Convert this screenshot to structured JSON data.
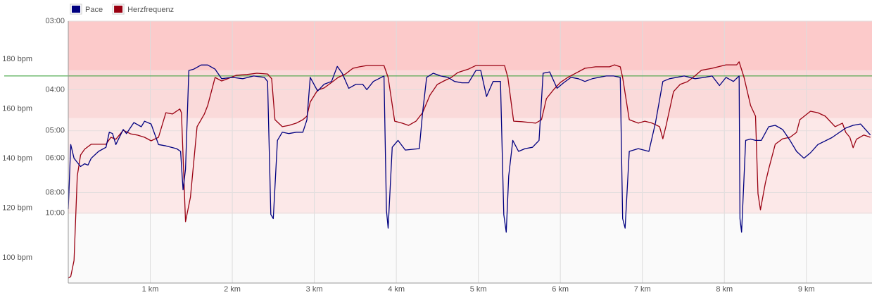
{
  "chart_data": {
    "type": "line",
    "legend": "top-left",
    "grid": true,
    "xlim": [
      0,
      9.8
    ],
    "xticks": [
      {
        "value": 1,
        "label": "1 km"
      },
      {
        "value": 2,
        "label": "2 km"
      },
      {
        "value": 3,
        "label": "3 km"
      },
      {
        "value": 4,
        "label": "4 km"
      },
      {
        "value": 5,
        "label": "5 km"
      },
      {
        "value": 6,
        "label": "6 km"
      },
      {
        "value": 7,
        "label": "7 km"
      },
      {
        "value": 8,
        "label": "8 km"
      },
      {
        "value": 9,
        "label": "9 km"
      }
    ],
    "ylim": [
      89.8,
      195.3
    ],
    "yticks": [
      {
        "value": 100,
        "label": "100 bpm"
      },
      {
        "value": 120,
        "label": "120 bpm"
      },
      {
        "value": 140,
        "label": "140 bpm"
      },
      {
        "value": 160,
        "label": "160 bpm"
      },
      {
        "value": 180,
        "label": "180 bpm"
      }
    ],
    "y2lim": [
      0.9,
      20
    ],
    "y2ticks": [
      {
        "value": 6,
        "label": "10:00"
      },
      {
        "value": 7.5,
        "label": "08:00"
      },
      {
        "value": 10,
        "label": "06:00"
      },
      {
        "value": 12,
        "label": "05:00"
      },
      {
        "value": 15,
        "label": "04:00"
      },
      {
        "value": 20,
        "label": "03:00"
      }
    ],
    "bands": [
      {
        "from": 117.7,
        "to": 156.3,
        "color": "#fce8e8"
      },
      {
        "from": 156.3,
        "to": 175.5,
        "color": "#fadada"
      },
      {
        "from": 175.5,
        "to": 195.3,
        "color": "#fccaca"
      }
    ],
    "threshold_line": {
      "value": 173.2,
      "color": "#2e9a2e"
    },
    "series": [
      {
        "name": "Pace",
        "color": "#000080",
        "axis": "y2",
        "x": [
          0,
          0.03,
          0.07,
          0.11,
          0.15,
          0.2,
          0.24,
          0.28,
          0.37,
          0.46,
          0.5,
          0.54,
          0.58,
          0.67,
          0.71,
          0.8,
          0.89,
          0.93,
          1.01,
          1.1,
          1.19,
          1.32,
          1.37,
          1.4,
          1.43,
          1.47,
          1.53,
          1.62,
          1.7,
          1.79,
          1.87,
          2.0,
          2.13,
          2.26,
          2.39,
          2.43,
          2.47,
          2.5,
          2.55,
          2.61,
          2.69,
          2.78,
          2.86,
          2.91,
          2.95,
          3.04,
          3.12,
          3.21,
          3.28,
          3.34,
          3.42,
          3.51,
          3.59,
          3.64,
          3.72,
          3.85,
          3.88,
          3.9,
          3.95,
          4.02,
          4.11,
          4.28,
          4.32,
          4.37,
          4.45,
          4.54,
          4.63,
          4.71,
          4.8,
          4.88,
          4.97,
          5.03,
          5.1,
          5.18,
          5.27,
          5.31,
          5.34,
          5.37,
          5.42,
          5.49,
          5.57,
          5.66,
          5.74,
          5.79,
          5.87,
          5.96,
          6.04,
          6.13,
          6.22,
          6.3,
          6.39,
          6.47,
          6.56,
          6.65,
          6.73,
          6.76,
          6.79,
          6.84,
          6.95,
          7.08,
          7.16,
          7.25,
          7.33,
          7.42,
          7.51,
          7.64,
          7.76,
          7.85,
          7.94,
          8.02,
          8.11,
          8.18,
          8.19,
          8.21,
          8.26,
          8.32,
          8.38,
          8.45,
          8.54,
          8.62,
          8.71,
          8.8,
          8.88,
          8.97,
          9.05,
          9.14,
          9.31,
          9.48,
          9.57,
          9.66,
          9.78
        ],
        "values": [
          6.3,
          11.0,
          10.0,
          9.7,
          9.4,
          9.6,
          9.5,
          10.0,
          10.5,
          10.8,
          11.9,
          11.8,
          11.0,
          12.1,
          11.8,
          12.6,
          12.3,
          12.7,
          12.5,
          11.0,
          10.9,
          10.7,
          10.5,
          7.7,
          9.2,
          16.4,
          16.5,
          16.8,
          16.8,
          16.5,
          15.8,
          15.9,
          15.8,
          16.0,
          15.9,
          15.6,
          5.9,
          5.6,
          11.3,
          11.9,
          11.8,
          11.9,
          11.9,
          12.8,
          15.9,
          14.9,
          15.4,
          15.6,
          16.7,
          16.2,
          15.1,
          15.4,
          15.4,
          15.0,
          15.6,
          16.0,
          6.2,
          4.9,
          10.8,
          11.3,
          10.6,
          10.7,
          13.3,
          15.9,
          16.2,
          16.0,
          15.9,
          15.6,
          15.5,
          15.5,
          16.4,
          16.4,
          14.5,
          15.6,
          15.6,
          5.9,
          4.6,
          8.7,
          11.3,
          10.5,
          10.7,
          10.8,
          11.3,
          16.2,
          16.3,
          15.1,
          15.5,
          15.9,
          15.8,
          15.6,
          15.8,
          15.9,
          16.0,
          16.0,
          15.9,
          5.6,
          4.9,
          10.5,
          10.7,
          10.5,
          12.6,
          15.6,
          15.8,
          15.9,
          16.0,
          15.8,
          15.9,
          16.0,
          15.3,
          15.9,
          15.6,
          16.0,
          5.6,
          4.6,
          11.3,
          11.4,
          11.3,
          11.3,
          12.3,
          12.4,
          12.1,
          11.3,
          10.5,
          10.0,
          10.4,
          11.0,
          11.5,
          12.2,
          12.4,
          12.5,
          11.7
        ]
      },
      {
        "name": "Herzfrequenz",
        "color": "#990011",
        "axis": "y",
        "x": [
          0,
          0.03,
          0.07,
          0.11,
          0.15,
          0.2,
          0.28,
          0.46,
          0.52,
          0.58,
          0.67,
          0.76,
          0.84,
          0.93,
          1.01,
          1.1,
          1.19,
          1.27,
          1.36,
          1.38,
          1.43,
          1.49,
          1.57,
          1.66,
          1.7,
          1.79,
          1.87,
          1.92,
          2.05,
          2.18,
          2.3,
          2.43,
          2.48,
          2.52,
          2.61,
          2.69,
          2.78,
          2.86,
          2.91,
          2.95,
          3.04,
          3.12,
          3.21,
          3.29,
          3.38,
          3.47,
          3.55,
          3.64,
          3.85,
          3.9,
          3.98,
          4.07,
          4.15,
          4.24,
          4.32,
          4.41,
          4.5,
          4.58,
          4.67,
          4.75,
          4.88,
          4.97,
          5.32,
          5.36,
          5.43,
          5.53,
          5.7,
          5.77,
          5.83,
          5.92,
          6.0,
          6.09,
          6.17,
          6.3,
          6.43,
          6.6,
          6.66,
          6.73,
          6.76,
          6.84,
          6.95,
          7.03,
          7.12,
          7.21,
          7.25,
          7.29,
          7.38,
          7.46,
          7.55,
          7.64,
          7.72,
          7.85,
          8.02,
          8.15,
          8.18,
          8.24,
          8.32,
          8.38,
          8.41,
          8.44,
          8.5,
          8.54,
          8.62,
          8.71,
          8.8,
          8.88,
          8.92,
          9.05,
          9.14,
          9.23,
          9.35,
          9.44,
          9.48,
          9.53,
          9.57,
          9.61,
          9.7,
          9.78
        ],
        "values": [
          91.8,
          92.4,
          98.9,
          132.9,
          141.4,
          143.7,
          145.7,
          145.7,
          148.5,
          147.7,
          151.3,
          149.9,
          149.4,
          148.5,
          147.1,
          148.5,
          158.4,
          157.9,
          159.9,
          158.4,
          114.5,
          124.4,
          152.8,
          157.9,
          161.3,
          172.6,
          171.2,
          171.8,
          173.5,
          173.8,
          174.3,
          174.0,
          172.1,
          155.6,
          152.8,
          153.3,
          154.2,
          155.6,
          157.0,
          162.7,
          167.5,
          168.4,
          170.6,
          172.6,
          174.0,
          176.3,
          176.9,
          177.4,
          177.4,
          172.6,
          155.0,
          154.2,
          153.3,
          155.0,
          158.4,
          165.5,
          169.8,
          171.2,
          172.6,
          174.6,
          176.0,
          177.4,
          177.4,
          172.6,
          155.0,
          154.8,
          154.2,
          155.6,
          164.1,
          167.8,
          170.6,
          172.6,
          174.0,
          176.3,
          176.9,
          176.9,
          177.7,
          176.9,
          172.6,
          155.6,
          154.2,
          155.0,
          154.2,
          152.8,
          147.9,
          153.3,
          166.9,
          169.8,
          170.9,
          173.2,
          175.5,
          176.3,
          177.7,
          177.7,
          178.9,
          172.6,
          161.3,
          157.0,
          125.8,
          119.3,
          130.1,
          135.7,
          145.7,
          147.9,
          148.5,
          150.5,
          155.6,
          159.0,
          158.4,
          157.0,
          152.8,
          154.2,
          150.5,
          148.5,
          144.3,
          147.7,
          149.4,
          148.5
        ]
      }
    ]
  }
}
